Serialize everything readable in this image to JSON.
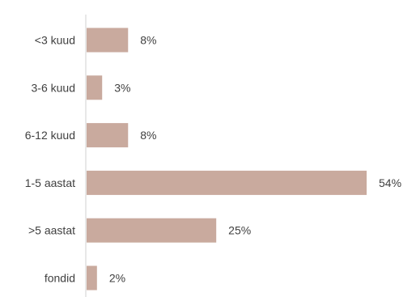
{
  "chart_data": {
    "type": "bar",
    "orientation": "horizontal",
    "categories": [
      "<3 kuud",
      "3-6 kuud",
      "6-12 kuud",
      "1-5 aastat",
      ">5 aastat",
      "fondid"
    ],
    "values": [
      8,
      3,
      8,
      54,
      25,
      2
    ],
    "value_labels": [
      "8%",
      "3%",
      "8%",
      "54%",
      "25%",
      "2%"
    ],
    "unit": "%",
    "xlim": [
      0,
      60
    ],
    "grid": false,
    "legend": "none",
    "title": "",
    "xlabel": "",
    "ylabel": "",
    "colors": {
      "bar": "#c9aa9e",
      "axis": "#d0d0d0",
      "text": "#404040"
    }
  }
}
